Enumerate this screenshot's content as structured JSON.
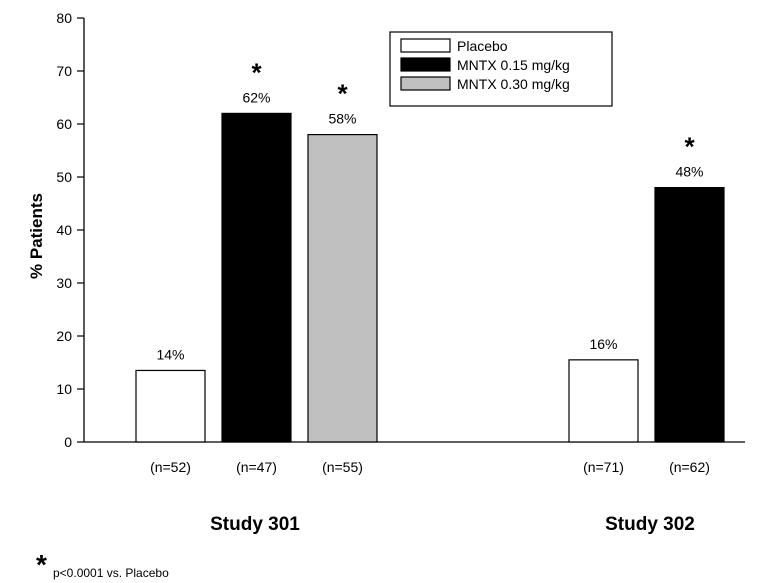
{
  "chart_data": {
    "type": "bar",
    "title": "",
    "xlabel": "",
    "ylabel": "% Patients",
    "ylim": [
      0,
      80
    ],
    "yticks": [
      0,
      10,
      20,
      30,
      40,
      50,
      60,
      70,
      80
    ],
    "grid": false,
    "legend_position": "top-right",
    "legend": [
      "Placebo",
      "MNTX 0.15 mg/kg",
      "MNTX 0.30 mg/kg"
    ],
    "series_colors": [
      "#ffffff",
      "#000000",
      "#c0c0c0"
    ],
    "groups": [
      {
        "label": "Study 301",
        "bars": [
          {
            "series": "Placebo",
            "value": 13.5,
            "label": "14%",
            "n": "(n=52)",
            "significant": false
          },
          {
            "series": "MNTX 0.15 mg/kg",
            "value": 62,
            "label": "62%",
            "n": "(n=47)",
            "significant": true
          },
          {
            "series": "MNTX 0.30 mg/kg",
            "value": 58,
            "label": "58%",
            "n": "(n=55)",
            "significant": true
          }
        ]
      },
      {
        "label": "Study 302",
        "bars": [
          {
            "series": "Placebo",
            "value": 15.5,
            "label": "16%",
            "n": "(n=71)",
            "significant": false
          },
          {
            "series": "MNTX 0.15 mg/kg",
            "value": 48,
            "label": "48%",
            "n": "(n=62)",
            "significant": true
          }
        ]
      }
    ],
    "significance_marker": "*",
    "footnote": "p<0.0001 vs. Placebo"
  }
}
